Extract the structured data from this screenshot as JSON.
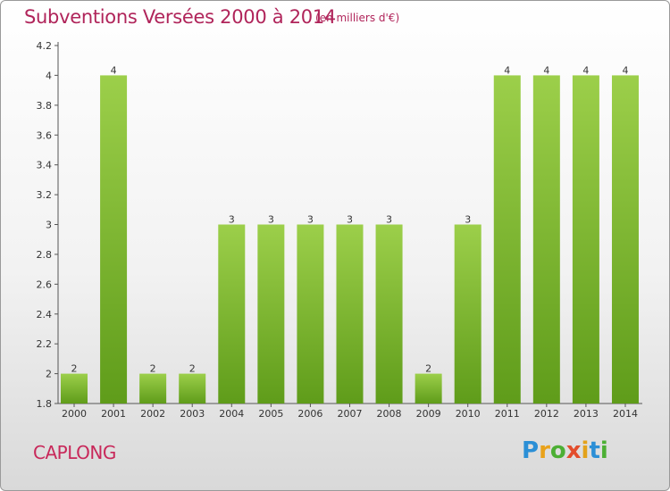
{
  "header": {
    "title": "Subventions Versées 2000 à 2014",
    "subtitle": "(en milliers d'€)"
  },
  "footer": {
    "commune": "CAPLONG",
    "logo": "Proxiti"
  },
  "colors": {
    "title": "#b0245a",
    "bar_light": "#9ccf4a",
    "bar_dark": "#5f9c1a"
  },
  "chart_data": {
    "type": "bar",
    "categories": [
      "2000",
      "2001",
      "2002",
      "2003",
      "2004",
      "2005",
      "2006",
      "2007",
      "2008",
      "2009",
      "2010",
      "2011",
      "2012",
      "2013",
      "2014"
    ],
    "values": [
      2,
      4,
      2,
      2,
      3,
      3,
      3,
      3,
      3,
      2,
      3,
      4,
      4,
      4,
      4
    ],
    "title": "Subventions Versées 2000 à 2014",
    "subtitle": "(en milliers d'€)",
    "ylim": [
      1.8,
      4.2
    ],
    "yticks": [
      "1.8",
      "2",
      "2.2",
      "2.4",
      "2.6",
      "2.8",
      "3",
      "3.2",
      "3.4",
      "3.6",
      "3.8",
      "4",
      "4.2"
    ],
    "grid": false
  }
}
